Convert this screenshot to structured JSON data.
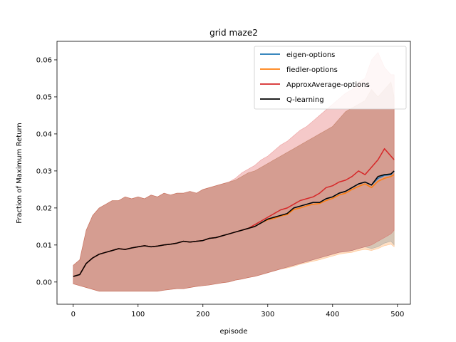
{
  "chart_data": {
    "type": "line",
    "title": "grid  maze2",
    "xlabel": "episode",
    "ylabel": "Fraction of Maximum Return",
    "xlim": [
      -25,
      520
    ],
    "ylim": [
      -0.006,
      0.065
    ],
    "xticks": [
      0,
      100,
      200,
      300,
      400,
      500
    ],
    "yticks": [
      0.0,
      0.01,
      0.02,
      0.03,
      0.04,
      0.05,
      0.06
    ],
    "xtick_labels": [
      "0",
      "100",
      "200",
      "300",
      "400",
      "500"
    ],
    "ytick_labels": [
      "0.00",
      "0.01",
      "0.02",
      "0.03",
      "0.04",
      "0.05",
      "0.06"
    ],
    "grid": false,
    "legend_position": "top-right",
    "x": [
      0,
      10,
      20,
      30,
      40,
      50,
      60,
      70,
      80,
      90,
      100,
      110,
      120,
      130,
      140,
      150,
      160,
      170,
      180,
      190,
      200,
      210,
      220,
      230,
      240,
      250,
      260,
      270,
      280,
      290,
      300,
      310,
      320,
      330,
      340,
      350,
      360,
      370,
      380,
      390,
      400,
      410,
      420,
      430,
      440,
      450,
      460,
      470,
      480,
      490,
      495
    ],
    "series": [
      {
        "name": "eigen-options",
        "color": "#1f77b4",
        "mean": [
          0.0015,
          0.002,
          0.005,
          0.0065,
          0.0075,
          0.008,
          0.0085,
          0.009,
          0.0088,
          0.0092,
          0.0095,
          0.0098,
          0.0095,
          0.0097,
          0.01,
          0.0102,
          0.0105,
          0.011,
          0.0108,
          0.011,
          0.0112,
          0.0118,
          0.012,
          0.0125,
          0.013,
          0.0135,
          0.014,
          0.0145,
          0.015,
          0.016,
          0.017,
          0.0175,
          0.018,
          0.0185,
          0.02,
          0.0205,
          0.021,
          0.0215,
          0.0215,
          0.0225,
          0.023,
          0.024,
          0.0245,
          0.0255,
          0.0265,
          0.027,
          0.0262,
          0.028,
          0.0288,
          0.029,
          0.03
        ],
        "upper": [
          0.0045,
          0.006,
          0.014,
          0.018,
          0.02,
          0.021,
          0.022,
          0.022,
          0.023,
          0.0225,
          0.023,
          0.0225,
          0.0235,
          0.023,
          0.024,
          0.0235,
          0.024,
          0.024,
          0.0245,
          0.024,
          0.025,
          0.0255,
          0.026,
          0.0265,
          0.027,
          0.0275,
          0.0285,
          0.0295,
          0.03,
          0.031,
          0.032,
          0.033,
          0.034,
          0.035,
          0.036,
          0.037,
          0.038,
          0.039,
          0.04,
          0.041,
          0.042,
          0.044,
          0.046,
          0.047,
          0.048,
          0.049,
          0.052,
          0.05,
          0.052,
          0.054,
          0.05
        ],
        "lower": [
          -0.0005,
          -0.001,
          -0.0015,
          -0.002,
          -0.0025,
          -0.0025,
          -0.0025,
          -0.0025,
          -0.0025,
          -0.0025,
          -0.0025,
          -0.0025,
          -0.0025,
          -0.0025,
          -0.0022,
          -0.002,
          -0.0018,
          -0.0018,
          -0.0015,
          -0.0012,
          -0.001,
          -0.0008,
          -0.0005,
          -0.0002,
          0.0,
          0.0005,
          0.0008,
          0.0012,
          0.0015,
          0.002,
          0.0025,
          0.003,
          0.0035,
          0.004,
          0.0045,
          0.005,
          0.0055,
          0.006,
          0.0065,
          0.007,
          0.0075,
          0.008,
          0.0082,
          0.0085,
          0.009,
          0.0095,
          0.009,
          0.0095,
          0.0105,
          0.011,
          0.01
        ]
      },
      {
        "name": "fiedler-options",
        "color": "#ff7f0e",
        "mean": [
          0.0015,
          0.002,
          0.005,
          0.0065,
          0.0075,
          0.008,
          0.0085,
          0.009,
          0.0088,
          0.0092,
          0.0095,
          0.0098,
          0.0095,
          0.0097,
          0.01,
          0.0102,
          0.0105,
          0.011,
          0.0108,
          0.011,
          0.0112,
          0.0118,
          0.012,
          0.0125,
          0.013,
          0.0135,
          0.014,
          0.0145,
          0.015,
          0.016,
          0.0168,
          0.0172,
          0.0178,
          0.0182,
          0.0196,
          0.02,
          0.0206,
          0.021,
          0.0212,
          0.022,
          0.0226,
          0.0235,
          0.024,
          0.025,
          0.0258,
          0.0265,
          0.0255,
          0.0272,
          0.028,
          0.0285,
          0.029
        ],
        "upper": [
          0.0045,
          0.006,
          0.014,
          0.018,
          0.02,
          0.021,
          0.022,
          0.022,
          0.023,
          0.0225,
          0.023,
          0.0225,
          0.0235,
          0.023,
          0.024,
          0.0235,
          0.024,
          0.024,
          0.0245,
          0.024,
          0.025,
          0.0255,
          0.026,
          0.0265,
          0.027,
          0.0275,
          0.0285,
          0.0295,
          0.03,
          0.031,
          0.032,
          0.033,
          0.034,
          0.035,
          0.036,
          0.037,
          0.038,
          0.039,
          0.04,
          0.041,
          0.042,
          0.044,
          0.046,
          0.047,
          0.048,
          0.049,
          0.052,
          0.05,
          0.052,
          0.054,
          0.05
        ],
        "lower": [
          -0.0005,
          -0.001,
          -0.0015,
          -0.002,
          -0.0025,
          -0.0025,
          -0.0025,
          -0.0025,
          -0.0025,
          -0.0025,
          -0.0025,
          -0.0025,
          -0.0025,
          -0.0025,
          -0.0022,
          -0.002,
          -0.0018,
          -0.0018,
          -0.0015,
          -0.0012,
          -0.001,
          -0.0008,
          -0.0005,
          -0.0002,
          0.0,
          0.0005,
          0.0008,
          0.0012,
          0.0015,
          0.002,
          0.0025,
          0.003,
          0.0035,
          0.0038,
          0.0042,
          0.0048,
          0.0052,
          0.0056,
          0.006,
          0.0065,
          0.007,
          0.0075,
          0.0078,
          0.008,
          0.0085,
          0.0088,
          0.0085,
          0.009,
          0.0098,
          0.0102,
          0.0095
        ]
      },
      {
        "name": "ApproxAverage-options",
        "color": "#d62728",
        "mean": [
          0.0015,
          0.002,
          0.005,
          0.0065,
          0.0075,
          0.008,
          0.0085,
          0.009,
          0.0088,
          0.0092,
          0.0095,
          0.0098,
          0.0095,
          0.0097,
          0.01,
          0.0102,
          0.0105,
          0.011,
          0.0108,
          0.011,
          0.0112,
          0.0118,
          0.012,
          0.0125,
          0.013,
          0.0135,
          0.014,
          0.0145,
          0.0155,
          0.0165,
          0.0175,
          0.0185,
          0.0195,
          0.02,
          0.021,
          0.022,
          0.0225,
          0.023,
          0.024,
          0.0255,
          0.026,
          0.027,
          0.0275,
          0.0285,
          0.03,
          0.029,
          0.031,
          0.033,
          0.036,
          0.034,
          0.033
        ],
        "upper": [
          0.0045,
          0.006,
          0.014,
          0.018,
          0.02,
          0.021,
          0.022,
          0.022,
          0.023,
          0.0225,
          0.023,
          0.0225,
          0.0235,
          0.023,
          0.024,
          0.0235,
          0.024,
          0.024,
          0.0245,
          0.024,
          0.025,
          0.0255,
          0.026,
          0.0265,
          0.027,
          0.028,
          0.0295,
          0.0305,
          0.0315,
          0.033,
          0.034,
          0.0355,
          0.037,
          0.038,
          0.0395,
          0.041,
          0.042,
          0.0435,
          0.045,
          0.0465,
          0.048,
          0.0495,
          0.051,
          0.052,
          0.054,
          0.055,
          0.06,
          0.062,
          0.058,
          0.056,
          0.056
        ],
        "lower": [
          -0.0005,
          -0.001,
          -0.0015,
          -0.002,
          -0.0025,
          -0.0025,
          -0.0025,
          -0.0025,
          -0.0025,
          -0.0025,
          -0.0025,
          -0.0025,
          -0.0025,
          -0.0025,
          -0.0022,
          -0.002,
          -0.0018,
          -0.0018,
          -0.0015,
          -0.0012,
          -0.001,
          -0.0008,
          -0.0005,
          -0.0002,
          0.0,
          0.0005,
          0.0008,
          0.0012,
          0.0015,
          0.002,
          0.0025,
          0.003,
          0.0035,
          0.004,
          0.0045,
          0.005,
          0.0055,
          0.006,
          0.0065,
          0.007,
          0.0075,
          0.008,
          0.0082,
          0.0085,
          0.009,
          0.0095,
          0.01,
          0.011,
          0.012,
          0.013,
          0.014
        ]
      },
      {
        "name": "Q-learning",
        "color": "#000000",
        "mean": [
          0.0015,
          0.002,
          0.005,
          0.0065,
          0.0075,
          0.008,
          0.0085,
          0.009,
          0.0088,
          0.0092,
          0.0095,
          0.0098,
          0.0095,
          0.0097,
          0.01,
          0.0102,
          0.0105,
          0.011,
          0.0108,
          0.011,
          0.0112,
          0.0118,
          0.012,
          0.0125,
          0.013,
          0.0135,
          0.014,
          0.0145,
          0.015,
          0.016,
          0.017,
          0.0175,
          0.018,
          0.0185,
          0.02,
          0.0205,
          0.021,
          0.0215,
          0.0215,
          0.0225,
          0.023,
          0.024,
          0.0245,
          0.0255,
          0.0265,
          0.027,
          0.0262,
          0.0285,
          0.029,
          0.0292,
          0.03
        ]
      }
    ]
  }
}
